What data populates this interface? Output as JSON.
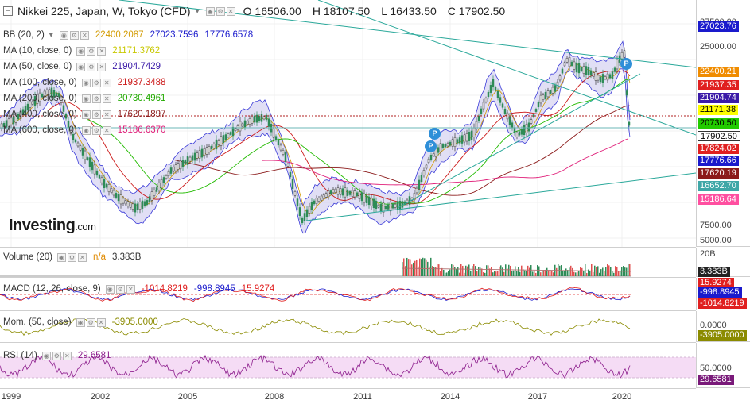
{
  "header": {
    "collapse_glyph": "−",
    "symbol": "Nikkei 225, Japan, W, Tokyo (CFD)",
    "ohlc": [
      {
        "label": "O",
        "value": "16506.00"
      },
      {
        "label": "H",
        "value": "18107.50"
      },
      {
        "label": "L",
        "value": "16433.50"
      },
      {
        "label": "C",
        "value": "17902.50"
      }
    ]
  },
  "indicators": [
    {
      "name": "BB (20, 2)",
      "values": [
        {
          "text": "22400.2087",
          "color": "#d39b00"
        },
        {
          "text": "27023.7596",
          "color": "#1a1acc"
        },
        {
          "text": "17776.6578",
          "color": "#1a1acc"
        }
      ]
    },
    {
      "name": "MA (10, close, 0)",
      "values": [
        {
          "text": "21171.3762",
          "color": "#c8c800"
        }
      ]
    },
    {
      "name": "MA (50, close, 0)",
      "values": [
        {
          "text": "21904.7429",
          "color": "#3a1aa8"
        }
      ]
    },
    {
      "name": "MA (100, close, 0)",
      "values": [
        {
          "text": "21937.3488",
          "color": "#cc1a1a"
        }
      ]
    },
    {
      "name": "MA (200, close, 0)",
      "values": [
        {
          "text": "20730.4961",
          "color": "#22aa00"
        }
      ]
    },
    {
      "name": "MA (400, close, 0)",
      "values": [
        {
          "text": "17620.1897",
          "color": "#8b1a1a"
        }
      ]
    },
    {
      "name": "MA (600, close, 0)",
      "values": [
        {
          "text": "15186.6370",
          "color": "#e0207a"
        }
      ]
    }
  ],
  "price_scale": {
    "ticks": [
      "27500.00",
      "25000.00",
      "7500.00",
      "5000.00"
    ],
    "tags": [
      {
        "text": "27023.76",
        "bg": "#1a1acc",
        "fg": "#ffffff"
      },
      {
        "text": "22400.21",
        "bg": "#f08c00",
        "fg": "#ffffff"
      },
      {
        "text": "21937.35",
        "bg": "#e02020",
        "fg": "#ffffff"
      },
      {
        "text": "21904.74",
        "bg": "#3a1aa8",
        "fg": "#ffffff"
      },
      {
        "text": "21171.38",
        "bg": "#ffff00",
        "fg": "#000000"
      },
      {
        "text": "20730.50",
        "bg": "#22cc00",
        "fg": "#000000"
      },
      {
        "text": "17902.50",
        "bg": "#ffffff",
        "fg": "#000000"
      },
      {
        "text": "17824.02",
        "bg": "#e02020",
        "fg": "#ffffff"
      },
      {
        "text": "17776.66",
        "bg": "#1a1acc",
        "fg": "#ffffff"
      },
      {
        "text": "17620.19",
        "bg": "#8b1a1a",
        "fg": "#ffffff"
      },
      {
        "text": "16652.70",
        "bg": "#3fa7a7",
        "fg": "#ffffff"
      },
      {
        "text": "15186.64",
        "bg": "#ff4fa0",
        "fg": "#ffffff"
      }
    ]
  },
  "volume": {
    "name": "Volume (20)",
    "na": "n/a",
    "value": "3.383B",
    "scale_tick": "20B",
    "tag": "3.383B"
  },
  "macd": {
    "name": "MACD (12, 26, close, 9)",
    "values": [
      {
        "text": "-1014.8219",
        "color": "#e02020"
      },
      {
        "text": "-998.8945",
        "color": "#1a1acc"
      },
      {
        "text": "15.9274",
        "color": "#e02020"
      }
    ],
    "tags": [
      {
        "text": "15.9274",
        "bg": "#e02020",
        "fg": "#ffffff"
      },
      {
        "text": "-998.8945",
        "bg": "#1a1acc",
        "fg": "#ffffff"
      },
      {
        "text": "-1014.8219",
        "bg": "#e02020",
        "fg": "#ffffff"
      }
    ]
  },
  "momentum": {
    "name": "Mom. (50, close)",
    "value": "-3905.0000",
    "scale_tick": "0.0000",
    "tag": "-3905.0000"
  },
  "rsi": {
    "name": "RSI (14)",
    "value": "29.6581",
    "scale_tick": "50.0000",
    "tag": "29.6581"
  },
  "x_axis": [
    "1999",
    "2002",
    "2005",
    "2008",
    "2011",
    "2014",
    "2017",
    "2020"
  ],
  "logo": {
    "brand": "Investing",
    "suffix": ".com"
  },
  "markers": [
    "P",
    "P",
    "P"
  ],
  "colors": {
    "candle_up": "#2e8b57",
    "band_fill": "#c9c4ec",
    "grid": "#ececec",
    "accent": "#2f8fd8"
  }
}
